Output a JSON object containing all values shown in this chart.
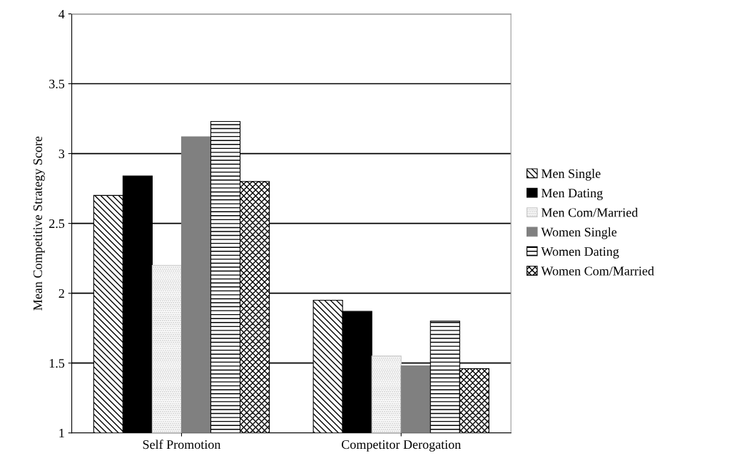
{
  "chart_data": {
    "type": "bar",
    "ylabel": "Mean Competitive Strategy Score",
    "categories": [
      "Self Promotion",
      "Competitor Derogation"
    ],
    "series": [
      {
        "name": "Men Single",
        "color": "#000000",
        "values": [
          2.7,
          1.95
        ]
      },
      {
        "name": "Men Dating",
        "color": "#000000",
        "values": [
          2.84,
          1.87
        ]
      },
      {
        "name": "Men Com/Married",
        "color": "#c8c8c8",
        "values": [
          2.2,
          1.55
        ]
      },
      {
        "name": "Women Single",
        "color": "#808080",
        "values": [
          3.12,
          1.48
        ]
      },
      {
        "name": "Women Dating",
        "color": "#000000",
        "values": [
          3.23,
          1.8
        ]
      },
      {
        "name": "Women Com/Married",
        "color": "#000000",
        "values": [
          2.8,
          1.46
        ]
      }
    ],
    "ylim": [
      1,
      4
    ],
    "yticks": [
      1,
      1.5,
      2,
      2.5,
      3,
      3.5,
      4
    ],
    "grid": "y",
    "legend": "right"
  }
}
